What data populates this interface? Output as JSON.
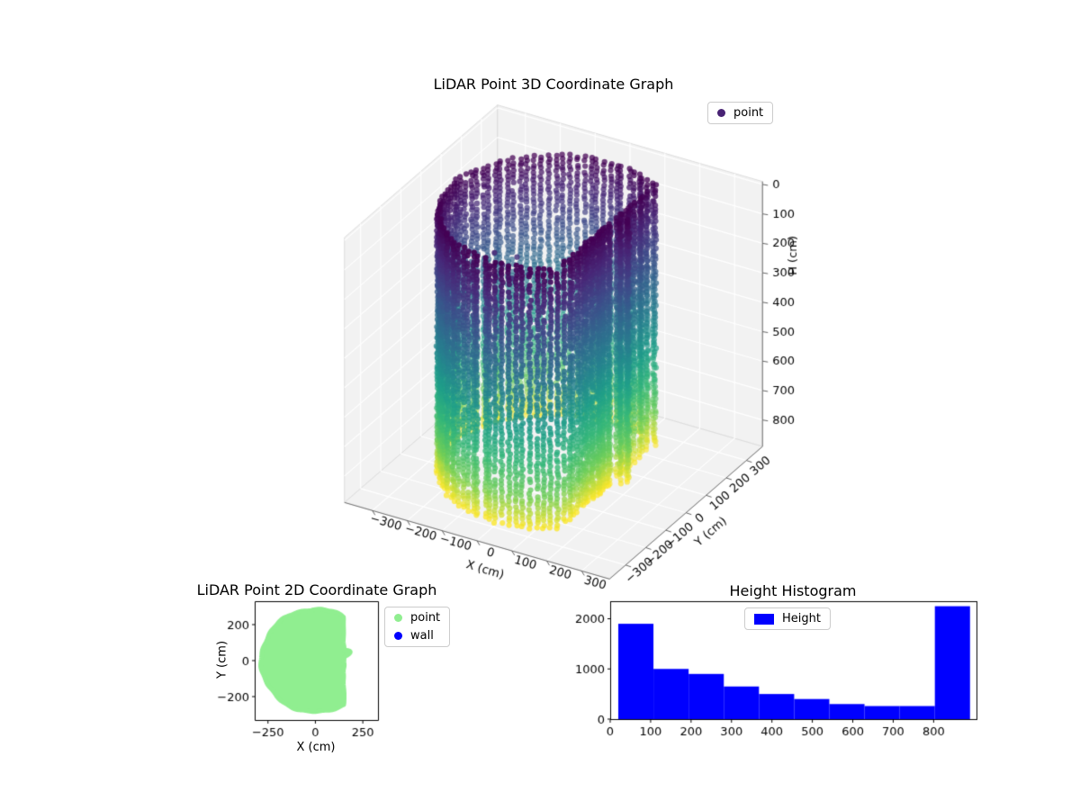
{
  "figure": {
    "background": "#ffffff"
  },
  "chart_data": [
    {
      "id": "plot3d",
      "type": "scatter",
      "projection": "3d",
      "title": "LiDAR Point 3D Coordinate Graph",
      "xlabel": "X (cm)",
      "ylabel": "Y (cm)",
      "zlabel": "H (cm)",
      "xticks": [
        -300,
        -200,
        -100,
        0,
        100,
        200,
        300
      ],
      "yticks": [
        -300,
        -200,
        -100,
        0,
        100,
        200,
        300
      ],
      "zticks": [
        0,
        100,
        200,
        300,
        400,
        500,
        600,
        700,
        800
      ],
      "xlim": [
        -380,
        380
      ],
      "ylim": [
        -380,
        380
      ],
      "zlim": [
        -10,
        890
      ],
      "z_axis_inverted": true,
      "grid": true,
      "view": {
        "elev": 30,
        "azim": -60
      },
      "legend": {
        "location": "upper right",
        "entries": [
          {
            "label": "point",
            "color": "#482374",
            "marker": "dot"
          }
        ]
      },
      "colormap": "viridis, colored by height (dark purple at H=0, yellow at H=880)",
      "point_cloud": {
        "description": "Vertical columns of LiDAR points forming the walls of a roughly cylindrical room",
        "base_radius_cm": 285,
        "flat_wall_at_x_cm": 150,
        "bump": {
          "theta_start_deg": 8,
          "theta_end_deg": 22,
          "tip_radius_cm": 190
        },
        "height_range_cm": [
          0,
          880
        ],
        "columns": 100,
        "points_per_column": 68,
        "interior_points_cm": [
          [
            -60,
            -150,
            110
          ],
          [
            -20,
            -170,
            130
          ],
          [
            -100,
            -120,
            100
          ],
          [
            -40,
            -100,
            150
          ],
          [
            10,
            -140,
            125
          ],
          [
            -70,
            -60,
            140
          ],
          [
            -15,
            -95,
            160
          ]
        ]
      }
    },
    {
      "id": "plot2d",
      "type": "scatter",
      "title": "LiDAR Point 2D Coordinate Graph",
      "xlabel": "X (cm)",
      "ylabel": "Y (cm)",
      "xticks": [
        -250,
        0,
        250
      ],
      "yticks": [
        -200,
        0,
        200
      ],
      "xlim": [
        -320,
        330
      ],
      "ylim": [
        -330,
        330
      ],
      "legend": {
        "location": "outside upper right",
        "entries": [
          {
            "label": "point",
            "color": "#90ee90",
            "marker": "dot"
          },
          {
            "label": "wall",
            "color": "#0000ff",
            "marker": "dot"
          }
        ]
      },
      "region": {
        "description": "Filled light-green disc of scan points: circle truncated by a flat wall on the right with a small pointed bump",
        "base_radius_cm": 285,
        "flat_wall_at_x_cm": 150,
        "bump": {
          "theta_start_deg": 8,
          "theta_end_deg": 22,
          "tip_radius_cm": 190
        }
      }
    },
    {
      "id": "histogram",
      "type": "histogram",
      "title": "Height Histogram",
      "legend": {
        "location": "upper center",
        "entries": [
          {
            "label": "Height",
            "color": "#0000ff",
            "marker": "rect"
          }
        ]
      },
      "bar_color": "#0000ff",
      "bin_edges": [
        20,
        107,
        194,
        281,
        368,
        455,
        542,
        629,
        716,
        803,
        890
      ],
      "counts": [
        1900,
        1000,
        900,
        650,
        500,
        400,
        300,
        260,
        260,
        2250
      ],
      "xticks": [
        0,
        100,
        200,
        300,
        400,
        500,
        600,
        700,
        800
      ],
      "yticks": [
        0,
        1000,
        2000
      ],
      "xlim": [
        0,
        906
      ],
      "ylim": [
        0,
        2350
      ]
    }
  ]
}
